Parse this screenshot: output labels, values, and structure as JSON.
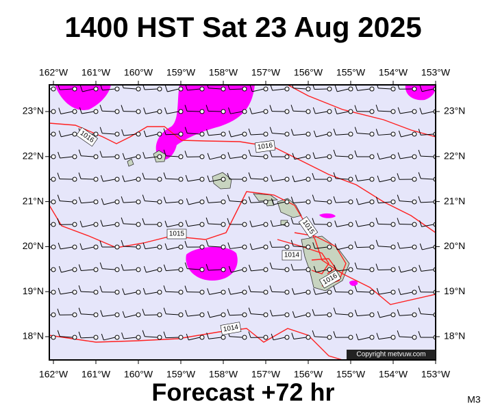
{
  "header": {
    "title": "1400 HST Sat 23 Aug 2025"
  },
  "map": {
    "lon_labels": [
      "162°W",
      "161°W",
      "160°W",
      "159°W",
      "158°W",
      "157°W",
      "156°W",
      "155°W",
      "154°W",
      "153°W"
    ],
    "lat_labels": [
      "23°N",
      "22°N",
      "21°N",
      "20°N",
      "19°N",
      "18°N"
    ],
    "isobar_labels": [
      "1016",
      "1016",
      "1015",
      "1015",
      "1014",
      "1016",
      "1014"
    ],
    "copyright": "Copyright metvuw.com"
  },
  "footer": {
    "forecast": "Forecast +72 hr",
    "code": "M3"
  }
}
